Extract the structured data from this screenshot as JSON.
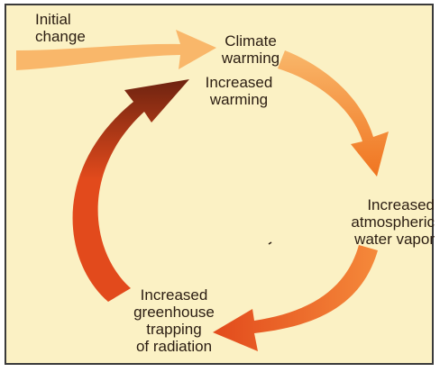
{
  "colors": {
    "background": "#fbf1c4",
    "frame": "#3a3a3a",
    "arrow_light": "#f9b76a",
    "arrow_mid": "#f5893a",
    "arrow_orange": "#f07420",
    "arrow_red": "#e24a1c",
    "arrow_dark": "#6e2310"
  },
  "labels": {
    "initial_change": "Initial\nchange",
    "climate_warming": "Climate\nwarming",
    "increased_warming": "Increased\nwarming",
    "water_vapor": "Increased\natmospheric\nwater vapor",
    "greenhouse": "Increased\ngreenhouse\ntrapping\nof radiation"
  }
}
